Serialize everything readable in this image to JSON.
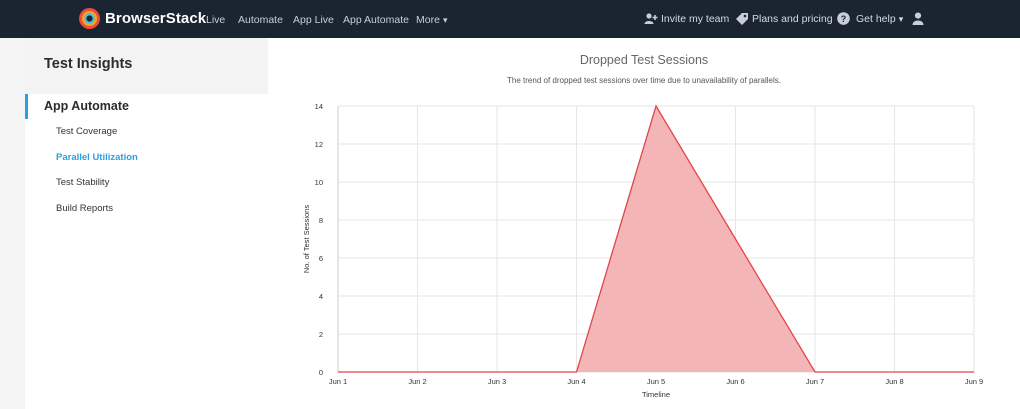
{
  "header": {
    "brand": "BrowserStack",
    "nav": [
      {
        "label": "Live"
      },
      {
        "label": "Automate"
      },
      {
        "label": "App Live"
      },
      {
        "label": "App Automate"
      },
      {
        "label": "More"
      }
    ],
    "invite_label": "Invite my team",
    "plans_label": "Plans and pricing",
    "help_label": "Get help",
    "icons": [
      "invite-team-icon",
      "plans-pricing-icon",
      "help-icon",
      "user-avatar-icon"
    ]
  },
  "sidebar": {
    "title": "Test Insights",
    "section": "App Automate",
    "items": [
      {
        "label": "Test Coverage",
        "active": false
      },
      {
        "label": "Parallel Utilization",
        "active": true
      },
      {
        "label": "Test Stability",
        "active": false
      },
      {
        "label": "Build Reports",
        "active": false
      }
    ]
  },
  "chart": {
    "title": "Dropped Test Sessions",
    "subtitle": "The trend of dropped test sessions over time due to unavailability of parallels."
  },
  "chart_data": {
    "type": "area",
    "title": "Dropped Test Sessions",
    "subtitle": "The trend of dropped test sessions over time due to unavailability of parallels.",
    "xlabel": "Timeline",
    "ylabel": "No. of Test Sessions",
    "categories": [
      "Jun 1",
      "Jun 2",
      "Jun 3",
      "Jun 4",
      "Jun 5",
      "Jun 6",
      "Jun 7",
      "Jun 8",
      "Jun 9"
    ],
    "series": [
      {
        "values": [
          0,
          0,
          0,
          0,
          14,
          7,
          0,
          0,
          0
        ],
        "color": "#e0454f",
        "fill": "#f2b1b1"
      }
    ],
    "yticks": [
      0,
      2,
      4,
      6,
      8,
      10,
      12,
      14
    ],
    "ylim": [
      0,
      14
    ],
    "grid": true,
    "legend": "none"
  }
}
